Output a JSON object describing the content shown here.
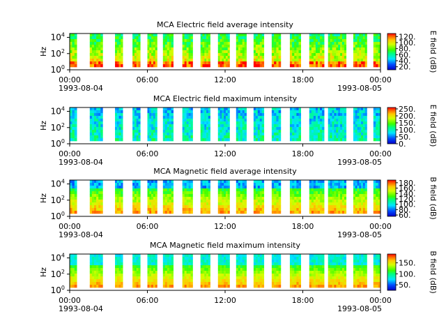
{
  "chart_data": [
    {
      "type": "heatmap",
      "title": "MCA  Electric field average intensity",
      "ylabel": "Hz",
      "ylim": [
        1,
        30000
      ],
      "yscale": "log",
      "xlim": [
        "1993-08-04 00:00",
        "1993-08-05 00:00"
      ],
      "xticks": [
        "00:00",
        "06:00",
        "12:00",
        "18:00",
        "00:00"
      ],
      "xdates": [
        "1993-08-04",
        "1993-08-05"
      ],
      "colorbar": {
        "label": "E field (dB)",
        "ticks": [
          "20.",
          "40.",
          "60.",
          "80.",
          "100.",
          "120."
        ],
        "range": [
          10,
          130
        ]
      },
      "data_intervals_hours": [
        [
          0.0,
          0.55
        ],
        [
          1.55,
          2.55
        ],
        [
          3.5,
          4.1
        ],
        [
          4.85,
          5.45
        ],
        [
          6.0,
          6.75
        ],
        [
          7.2,
          8.0
        ],
        [
          8.7,
          9.5
        ],
        [
          10.1,
          10.85
        ],
        [
          11.45,
          12.35
        ],
        [
          12.85,
          13.65
        ],
        [
          14.2,
          15.0
        ],
        [
          15.6,
          16.3
        ],
        [
          17.0,
          17.85
        ],
        [
          18.5,
          19.65
        ],
        [
          19.95,
          21.35
        ],
        [
          21.9,
          22.95
        ],
        [
          23.45,
          24.0
        ]
      ]
    },
    {
      "type": "heatmap",
      "title": "MCA  Electric field maximum intensity",
      "ylabel": "Hz",
      "ylim": [
        1,
        30000
      ],
      "yscale": "log",
      "xlim": [
        "1993-08-04 00:00",
        "1993-08-05 00:00"
      ],
      "xticks": [
        "00:00",
        "06:00",
        "12:00",
        "18:00",
        "00:00"
      ],
      "xdates": [
        "1993-08-04",
        "1993-08-05"
      ],
      "colorbar": {
        "label": "E field (dB)",
        "ticks": [
          "0.",
          "50.",
          "100.",
          "150.",
          "200.",
          "250."
        ],
        "range": [
          0,
          260
        ]
      },
      "data_intervals_hours": [
        [
          0.0,
          0.55
        ],
        [
          1.55,
          2.55
        ],
        [
          3.5,
          4.1
        ],
        [
          4.85,
          5.45
        ],
        [
          6.0,
          6.75
        ],
        [
          7.2,
          8.0
        ],
        [
          8.7,
          9.5
        ],
        [
          10.1,
          10.85
        ],
        [
          11.45,
          12.35
        ],
        [
          12.85,
          13.65
        ],
        [
          14.2,
          15.0
        ],
        [
          15.6,
          16.3
        ],
        [
          17.0,
          17.85
        ],
        [
          18.5,
          19.65
        ],
        [
          19.95,
          21.35
        ],
        [
          21.9,
          22.95
        ],
        [
          23.45,
          24.0
        ]
      ]
    },
    {
      "type": "heatmap",
      "title": "MCA  Magnetic field average intensity",
      "ylabel": "Hz",
      "ylim": [
        1,
        30000
      ],
      "yscale": "log",
      "xlim": [
        "1993-08-04 00:00",
        "1993-08-05 00:00"
      ],
      "xticks": [
        "00:00",
        "06:00",
        "12:00",
        "18:00",
        "00:00"
      ],
      "xdates": [
        "1993-08-04",
        "1993-08-05"
      ],
      "colorbar": {
        "label": "B field (dB)",
        "ticks": [
          "60.",
          "80.",
          "100.",
          "120.",
          "140.",
          "160.",
          "180."
        ],
        "range": [
          55,
          190
        ]
      },
      "data_intervals_hours": [
        [
          0.0,
          0.55
        ],
        [
          1.55,
          2.55
        ],
        [
          3.5,
          4.1
        ],
        [
          4.85,
          5.45
        ],
        [
          6.0,
          6.75
        ],
        [
          7.2,
          8.0
        ],
        [
          8.7,
          9.5
        ],
        [
          10.1,
          10.85
        ],
        [
          11.45,
          12.35
        ],
        [
          12.85,
          13.65
        ],
        [
          14.2,
          15.0
        ],
        [
          15.6,
          16.3
        ],
        [
          17.0,
          17.85
        ],
        [
          18.5,
          19.65
        ],
        [
          19.95,
          21.35
        ],
        [
          21.9,
          22.95
        ],
        [
          23.45,
          24.0
        ]
      ]
    },
    {
      "type": "heatmap",
      "title": "MCA  Magnetic field maximum intensity",
      "ylabel": "Hz",
      "ylim": [
        1,
        30000
      ],
      "yscale": "log",
      "xlim": [
        "1993-08-04 00:00",
        "1993-08-05 00:00"
      ],
      "xticks": [
        "00:00",
        "06:00",
        "12:00",
        "18:00",
        "00:00"
      ],
      "xdates": [
        "1993-08-04",
        "1993-08-05"
      ],
      "colorbar": {
        "label": "B field (dB)",
        "ticks": [
          "50.",
          "100.",
          "150."
        ],
        "range": [
          25,
          190
        ]
      },
      "data_intervals_hours": [
        [
          0.0,
          0.55
        ],
        [
          1.55,
          2.55
        ],
        [
          3.5,
          4.1
        ],
        [
          4.85,
          5.45
        ],
        [
          6.0,
          6.75
        ],
        [
          7.2,
          8.0
        ],
        [
          8.7,
          9.5
        ],
        [
          10.1,
          10.85
        ],
        [
          11.45,
          12.35
        ],
        [
          12.85,
          13.65
        ],
        [
          14.2,
          15.0
        ],
        [
          15.6,
          16.3
        ],
        [
          17.0,
          17.85
        ],
        [
          18.5,
          19.65
        ],
        [
          19.95,
          21.35
        ],
        [
          21.9,
          22.95
        ],
        [
          23.45,
          24.0
        ]
      ]
    }
  ]
}
